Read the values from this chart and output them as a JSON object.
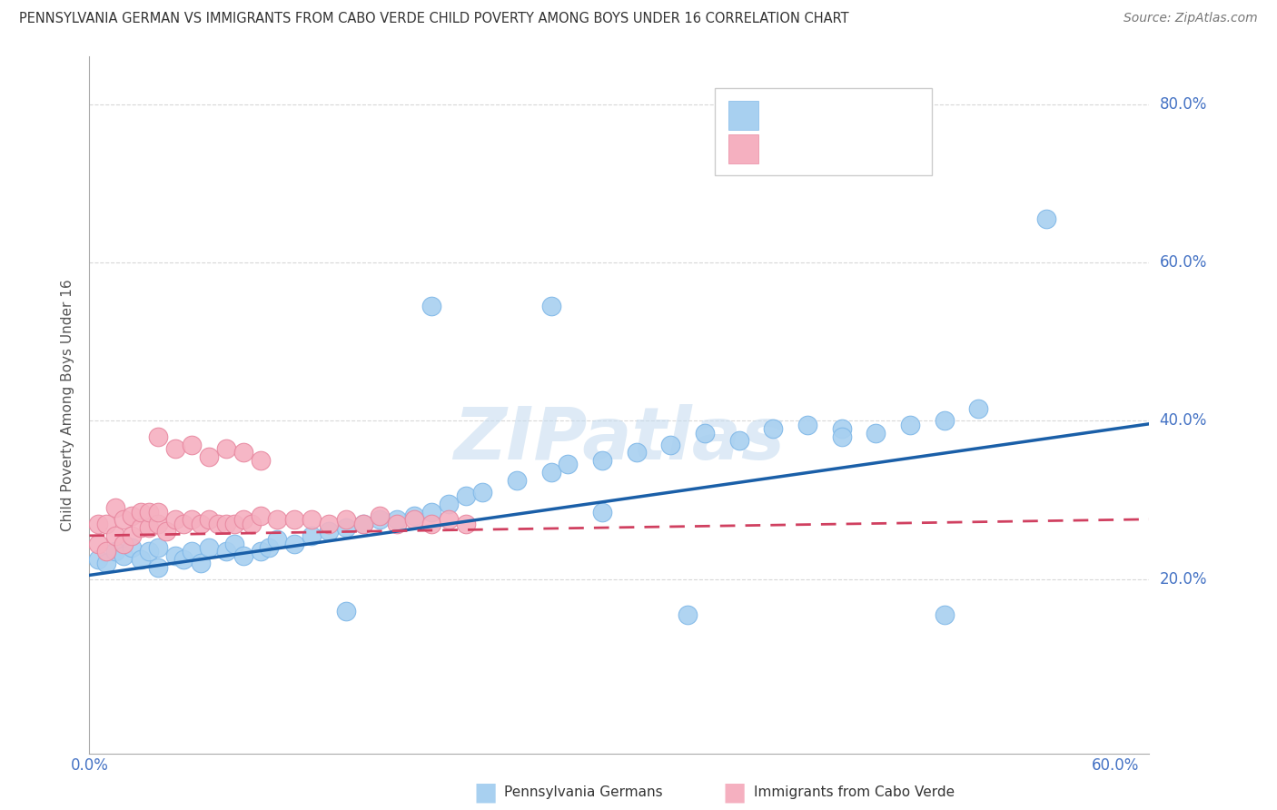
{
  "title": "PENNSYLVANIA GERMAN VS IMMIGRANTS FROM CABO VERDE CHILD POVERTY AMONG BOYS UNDER 16 CORRELATION CHART",
  "source": "Source: ZipAtlas.com",
  "ylabel": "Child Poverty Among Boys Under 16",
  "xlim": [
    0.0,
    0.62
  ],
  "ylim": [
    -0.02,
    0.86
  ],
  "blue_color": "#a8d0f0",
  "blue_edge_color": "#80b8e8",
  "pink_color": "#f5b0c0",
  "pink_edge_color": "#e888a0",
  "blue_line_color": "#1a5fa8",
  "pink_line_color": "#d04060",
  "watermark_color": "#c8ddf0",
  "grid_color": "#d8d8d8",
  "tick_color": "#4472c4",
  "title_color": "#333333",
  "source_color": "#777777",
  "ylabel_color": "#555555",
  "blue_scatter_x": [
    0.005,
    0.01,
    0.015,
    0.02,
    0.025,
    0.03,
    0.035,
    0.04,
    0.04,
    0.05,
    0.055,
    0.06,
    0.065,
    0.07,
    0.08,
    0.085,
    0.09,
    0.1,
    0.105,
    0.11,
    0.12,
    0.13,
    0.14,
    0.15,
    0.16,
    0.17,
    0.18,
    0.19,
    0.2,
    0.21,
    0.22,
    0.23,
    0.25,
    0.27,
    0.28,
    0.3,
    0.32,
    0.34,
    0.36,
    0.38,
    0.4,
    0.42,
    0.44,
    0.46,
    0.48,
    0.5,
    0.52,
    0.27,
    0.2,
    0.35,
    0.5,
    0.56,
    0.44,
    0.15,
    0.3
  ],
  "blue_scatter_y": [
    0.225,
    0.22,
    0.235,
    0.23,
    0.24,
    0.225,
    0.235,
    0.24,
    0.215,
    0.23,
    0.225,
    0.235,
    0.22,
    0.24,
    0.235,
    0.245,
    0.23,
    0.235,
    0.24,
    0.25,
    0.245,
    0.255,
    0.26,
    0.265,
    0.27,
    0.275,
    0.275,
    0.28,
    0.285,
    0.295,
    0.305,
    0.31,
    0.325,
    0.335,
    0.345,
    0.35,
    0.36,
    0.37,
    0.385,
    0.375,
    0.39,
    0.395,
    0.39,
    0.385,
    0.395,
    0.4,
    0.415,
    0.545,
    0.545,
    0.155,
    0.155,
    0.655,
    0.38,
    0.16,
    0.285
  ],
  "pink_scatter_x": [
    0.005,
    0.005,
    0.01,
    0.01,
    0.015,
    0.015,
    0.02,
    0.02,
    0.025,
    0.025,
    0.03,
    0.03,
    0.035,
    0.035,
    0.04,
    0.04,
    0.045,
    0.05,
    0.055,
    0.06,
    0.065,
    0.07,
    0.075,
    0.08,
    0.085,
    0.09,
    0.095,
    0.1,
    0.11,
    0.12,
    0.13,
    0.14,
    0.15,
    0.16,
    0.17,
    0.18,
    0.19,
    0.2,
    0.21,
    0.22,
    0.04,
    0.05,
    0.06,
    0.07,
    0.08,
    0.09,
    0.1
  ],
  "pink_scatter_y": [
    0.245,
    0.27,
    0.235,
    0.27,
    0.255,
    0.29,
    0.245,
    0.275,
    0.255,
    0.28,
    0.265,
    0.285,
    0.265,
    0.285,
    0.27,
    0.285,
    0.26,
    0.275,
    0.27,
    0.275,
    0.27,
    0.275,
    0.27,
    0.27,
    0.27,
    0.275,
    0.27,
    0.28,
    0.275,
    0.275,
    0.275,
    0.27,
    0.275,
    0.27,
    0.28,
    0.27,
    0.275,
    0.27,
    0.275,
    0.27,
    0.38,
    0.365,
    0.37,
    0.355,
    0.365,
    0.36,
    0.35
  ]
}
